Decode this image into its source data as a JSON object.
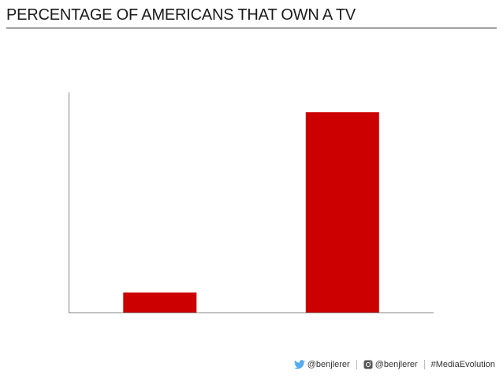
{
  "slide": {
    "title": "PERCENTAGE OF AMERICANS THAT OWN A TV"
  },
  "chart_data": {
    "type": "bar",
    "title": "PERCENTAGE OF AMERICANS THAT OWN A TV",
    "categories": [
      "",
      ""
    ],
    "values": [
      9,
      90
    ],
    "ylim": [
      0,
      100
    ],
    "xlabel": "",
    "ylabel": "",
    "grid": false,
    "colors": {
      "bar": "#cc0000",
      "axis": "#888888"
    }
  },
  "footer": {
    "twitter_icon": "twitter-bird-icon",
    "twitter_handle": "@benjlerer",
    "instagram_icon": "instagram-icon",
    "instagram_handle": "@benjlerer",
    "hashtag": "#MediaEvolution"
  }
}
